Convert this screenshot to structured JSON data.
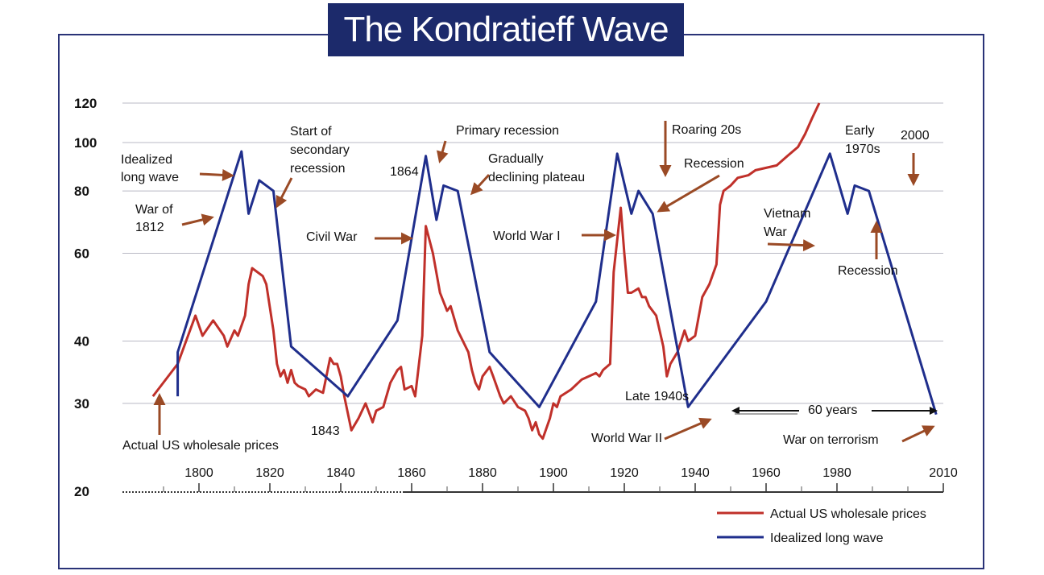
{
  "title": "The Kondratieff Wave",
  "chart_data": {
    "type": "line",
    "title": "The Kondratieff Wave",
    "xlabel": "",
    "ylabel": "",
    "y_scale": "log",
    "ylim": [
      20,
      120
    ],
    "xlim": [
      1780,
      2010
    ],
    "y_ticks": [
      20,
      30,
      40,
      60,
      80,
      100,
      120
    ],
    "y_tick_labels": [
      "20",
      "30",
      "40",
      "60",
      "80",
      "100",
      "120"
    ],
    "x_ticks": [
      1800,
      1820,
      1840,
      1860,
      1880,
      1900,
      1920,
      1940,
      1960,
      1980,
      2010
    ],
    "x_tick_labels": [
      "1800",
      "1820",
      "1840",
      "1860",
      "1880",
      "1900",
      "1920",
      "1940",
      "1960",
      "1980",
      "2010"
    ],
    "grid": true,
    "legend_position": "bottom-right",
    "series": [
      {
        "name": "Actual US wholesale prices",
        "color": "#c0302a",
        "points": [
          [
            1787,
            31
          ],
          [
            1794,
            36
          ],
          [
            1799,
            45
          ],
          [
            1801,
            41
          ],
          [
            1804,
            44
          ],
          [
            1807,
            41
          ],
          [
            1808,
            39
          ],
          [
            1810,
            42
          ],
          [
            1811,
            41
          ],
          [
            1813,
            45
          ],
          [
            1814,
            52
          ],
          [
            1815,
            56
          ],
          [
            1818,
            54
          ],
          [
            1819,
            52
          ],
          [
            1821,
            42
          ],
          [
            1822,
            36
          ],
          [
            1823,
            34
          ],
          [
            1824,
            35
          ],
          [
            1825,
            33
          ],
          [
            1826,
            35
          ],
          [
            1827,
            33
          ],
          [
            1828,
            32.5
          ],
          [
            1830,
            32
          ],
          [
            1831,
            31
          ],
          [
            1833,
            32
          ],
          [
            1835,
            31.5
          ],
          [
            1837,
            37
          ],
          [
            1838,
            36
          ],
          [
            1839,
            36
          ],
          [
            1840,
            34
          ],
          [
            1841,
            31
          ],
          [
            1843,
            26.5
          ],
          [
            1845,
            28
          ],
          [
            1847,
            30
          ],
          [
            1849,
            27.5
          ],
          [
            1850,
            29
          ],
          [
            1852,
            29.5
          ],
          [
            1854,
            33
          ],
          [
            1856,
            35
          ],
          [
            1857,
            35.5
          ],
          [
            1858,
            32
          ],
          [
            1860,
            32.5
          ],
          [
            1861,
            31
          ],
          [
            1863,
            41
          ],
          [
            1864,
            68
          ],
          [
            1866,
            60
          ],
          [
            1868,
            50
          ],
          [
            1870,
            46
          ],
          [
            1871,
            47
          ],
          [
            1873,
            42
          ],
          [
            1876,
            38
          ],
          [
            1877,
            35
          ],
          [
            1878,
            33
          ],
          [
            1879,
            32
          ],
          [
            1880,
            34
          ],
          [
            1882,
            35.5
          ],
          [
            1883,
            34
          ],
          [
            1885,
            31
          ],
          [
            1886,
            30
          ],
          [
            1888,
            31
          ],
          [
            1890,
            29.5
          ],
          [
            1892,
            29
          ],
          [
            1893,
            28
          ],
          [
            1894,
            26.5
          ],
          [
            1895,
            27.5
          ],
          [
            1896,
            26
          ],
          [
            1897,
            25.5
          ],
          [
            1899,
            28
          ],
          [
            1900,
            30
          ],
          [
            1901,
            29.5
          ],
          [
            1902,
            31
          ],
          [
            1905,
            32
          ],
          [
            1908,
            33.5
          ],
          [
            1910,
            34
          ],
          [
            1912,
            34.5
          ],
          [
            1913,
            34
          ],
          [
            1914,
            35
          ],
          [
            1916,
            36
          ],
          [
            1917,
            55
          ],
          [
            1919,
            74
          ],
          [
            1920,
            60
          ],
          [
            1921,
            50
          ],
          [
            1922,
            50
          ],
          [
            1924,
            51
          ],
          [
            1925,
            49
          ],
          [
            1926,
            49
          ],
          [
            1927,
            47
          ],
          [
            1929,
            45
          ],
          [
            1931,
            39
          ],
          [
            1932,
            34
          ],
          [
            1933,
            36
          ],
          [
            1935,
            38
          ],
          [
            1937,
            42
          ],
          [
            1938,
            40
          ],
          [
            1940,
            41
          ],
          [
            1942,
            49
          ],
          [
            1944,
            52
          ],
          [
            1946,
            57
          ],
          [
            1947,
            75
          ],
          [
            1948,
            80
          ],
          [
            1950,
            82
          ],
          [
            1952,
            85
          ],
          [
            1955,
            86
          ],
          [
            1957,
            88
          ],
          [
            1960,
            89
          ],
          [
            1963,
            90
          ],
          [
            1966,
            94
          ],
          [
            1969,
            98
          ],
          [
            1971,
            104
          ],
          [
            1973,
            112
          ],
          [
            1975,
            120
          ]
        ]
      },
      {
        "name": "Idealized long wave",
        "color": "#1f2e8c",
        "points": [
          [
            1794,
            31
          ],
          [
            1794,
            38
          ],
          [
            1812,
            96
          ],
          [
            1814,
            72
          ],
          [
            1817,
            84
          ],
          [
            1821,
            80
          ],
          [
            1826,
            39
          ],
          [
            1842,
            31
          ],
          [
            1856,
            44
          ],
          [
            1864,
            94
          ],
          [
            1867,
            70
          ],
          [
            1869,
            82
          ],
          [
            1873,
            80
          ],
          [
            1882,
            38
          ],
          [
            1896,
            29.5
          ],
          [
            1912,
            48
          ],
          [
            1918,
            95
          ],
          [
            1922,
            72
          ],
          [
            1924,
            80
          ],
          [
            1928,
            72
          ],
          [
            1938,
            29.5
          ],
          [
            1960,
            48
          ],
          [
            1978,
            95
          ],
          [
            1983,
            72
          ],
          [
            1985,
            82
          ],
          [
            1989,
            80
          ],
          [
            2008,
            28.5
          ]
        ]
      }
    ],
    "annotations": [
      {
        "text": "Idealized long wave"
      },
      {
        "text": "War of 1812"
      },
      {
        "text": "Start of secondary recession"
      },
      {
        "text": "Actual US wholesale prices"
      },
      {
        "text": "1843"
      },
      {
        "text": "Civil War"
      },
      {
        "text": "1864"
      },
      {
        "text": "Primary recession"
      },
      {
        "text": "Gradually declining plateau"
      },
      {
        "text": "World War I"
      },
      {
        "text": "Roaring 20s"
      },
      {
        "text": "Recession"
      },
      {
        "text": "Late 1940s"
      },
      {
        "text": "World War II"
      },
      {
        "text": "Early 1970s"
      },
      {
        "text": "2000"
      },
      {
        "text": "Vietnam War"
      },
      {
        "text": "Recession"
      },
      {
        "text": "60 years"
      },
      {
        "text": "War on terrorism"
      }
    ]
  },
  "legend": {
    "items": [
      {
        "label": "Actual US wholesale prices",
        "color": "#c0302a"
      },
      {
        "label": "Idealized long wave",
        "color": "#1f2e8c"
      }
    ]
  }
}
